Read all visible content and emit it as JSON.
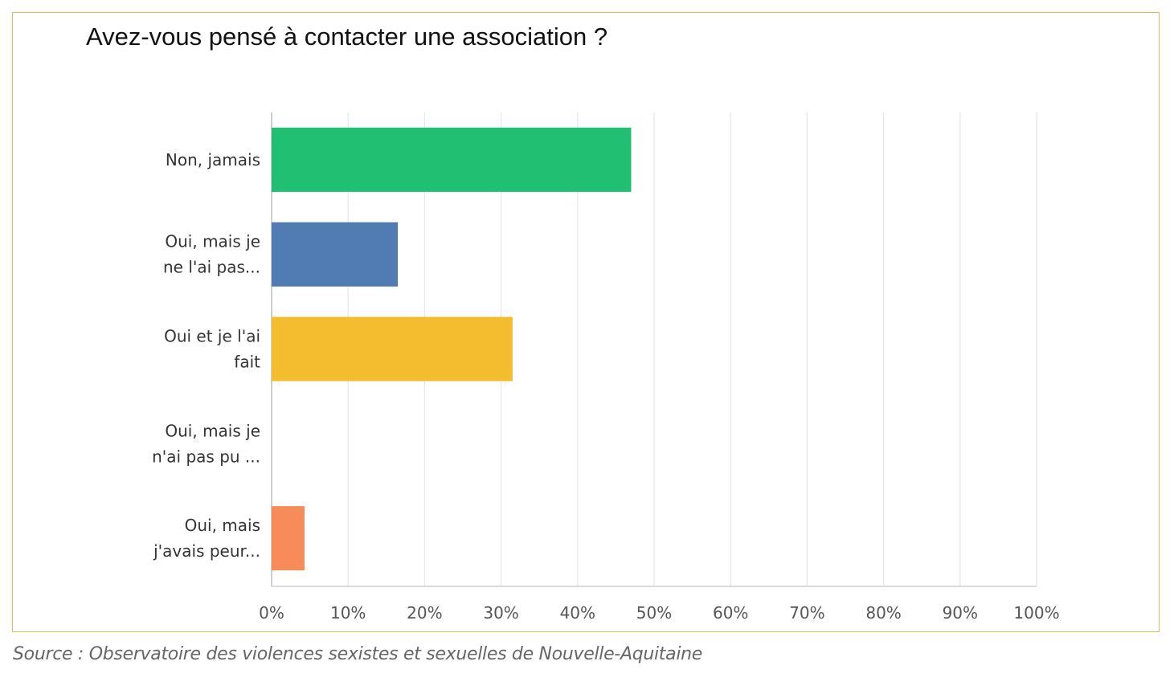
{
  "chart_data": {
    "type": "bar",
    "orientation": "horizontal",
    "title": "Avez-vous pensé à contacter une association ?",
    "categories": [
      [
        "Non, jamais"
      ],
      [
        "Oui, mais je",
        "ne l'ai pas..."
      ],
      [
        "Oui et je l'ai",
        "fait"
      ],
      [
        "Oui, mais je",
        "n'ai pas pu ..."
      ],
      [
        "Oui, mais",
        "j'avais peur..."
      ]
    ],
    "values": [
      47,
      16.5,
      31.5,
      0,
      4.3
    ],
    "colors": [
      "#20bf72",
      "#517bb3",
      "#f4bd30",
      "#4a8fd6",
      "#f88b5a"
    ],
    "xlim": [
      0,
      100
    ],
    "xticks": [
      "0%",
      "10%",
      "20%",
      "30%",
      "40%",
      "50%",
      "60%",
      "70%",
      "80%",
      "90%",
      "100%"
    ],
    "grid": true,
    "legend": "none"
  },
  "source": "Source : Observatoire des violences sexistes et sexuelles de Nouvelle-Aquitaine"
}
